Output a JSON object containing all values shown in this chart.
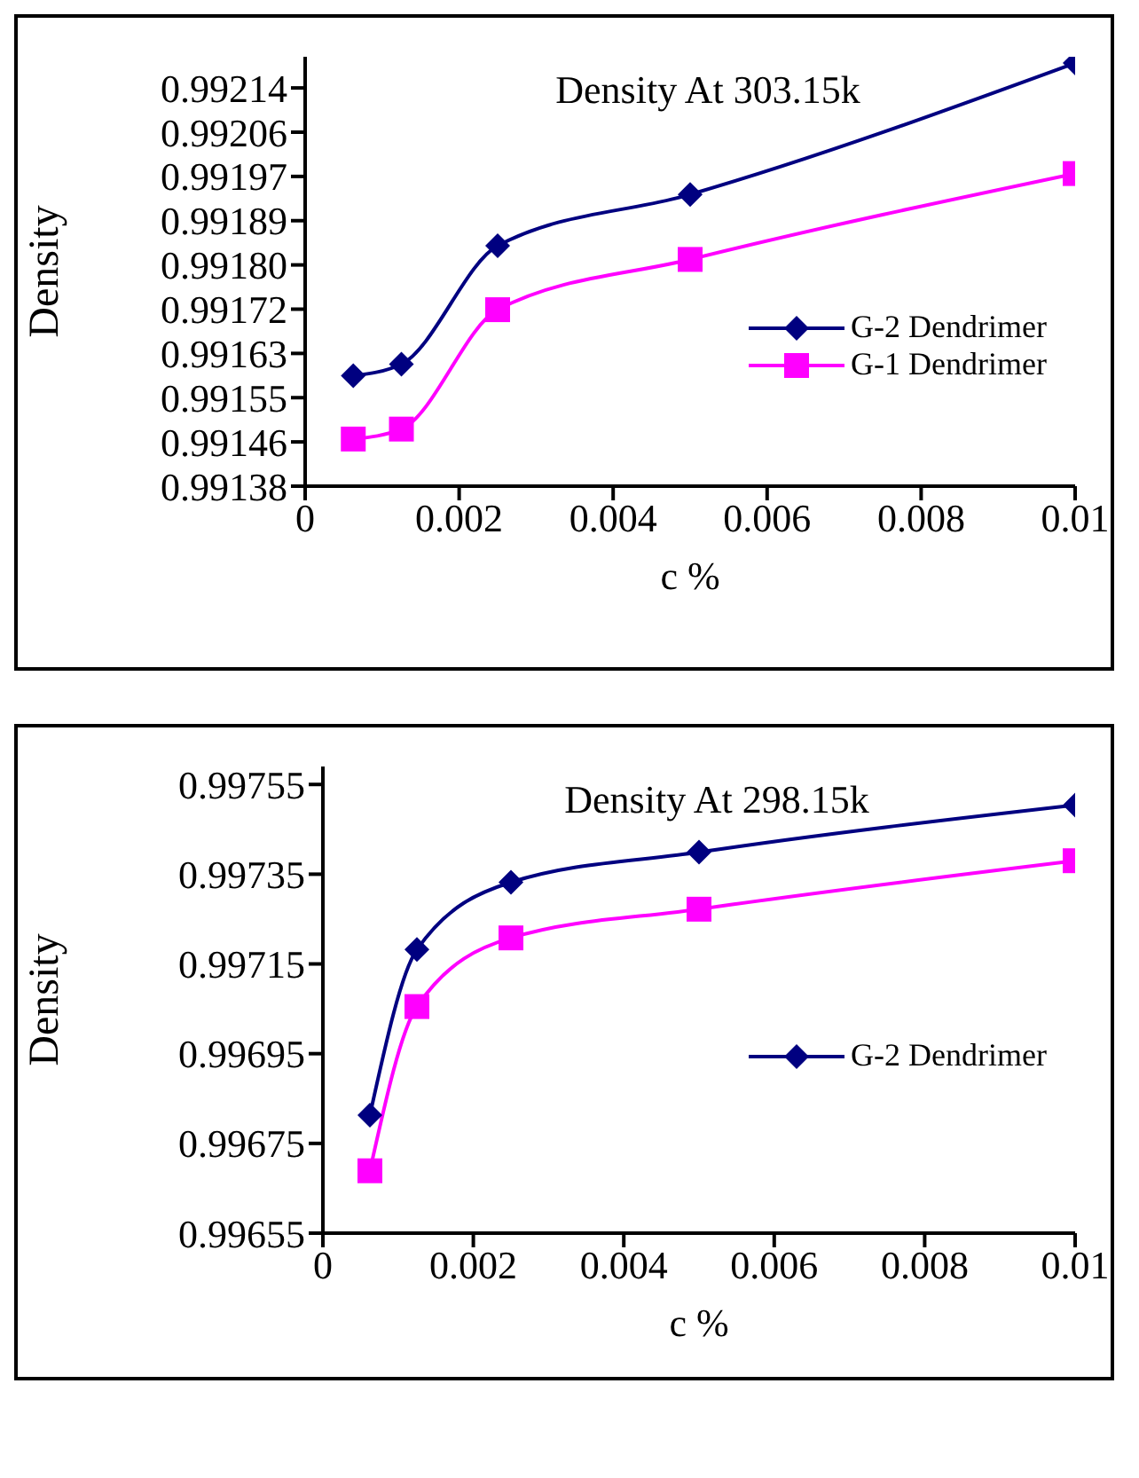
{
  "chart_data": [
    {
      "type": "line",
      "title": "Density At 303.15k",
      "xlabel": "c %",
      "ylabel": "Density",
      "x": [
        0.000625,
        0.00125,
        0.0025,
        0.005,
        0.01
      ],
      "series": [
        {
          "name": "G-2 Dendrimer",
          "color": "#000080",
          "marker": "diamond",
          "values": [
            0.991591,
            0.991613,
            0.991839,
            0.991937,
            0.992188
          ]
        },
        {
          "name": "G-1 Dendrimer",
          "color": "#ff00ff",
          "marker": "square",
          "values": [
            0.99147,
            0.991489,
            0.991717,
            0.991813,
            0.991977
          ]
        }
      ],
      "xlim": [
        0,
        0.01
      ],
      "xticks": [
        0,
        0.002,
        0.004,
        0.006,
        0.008,
        0.01
      ],
      "ylim": [
        0.99138,
        0.9922
      ],
      "yticks": [
        {
          "value": 0.99138,
          "label": "0.99138"
        },
        {
          "value": 0.9914645,
          "label": "0.99146"
        },
        {
          "value": 0.991549,
          "label": "0.99155"
        },
        {
          "value": 0.9916335,
          "label": "0.99163"
        },
        {
          "value": 0.991718,
          "label": "0.99172"
        },
        {
          "value": 0.9918025,
          "label": "0.99180"
        },
        {
          "value": 0.991887,
          "label": "0.99189"
        },
        {
          "value": 0.9919715,
          "label": "0.99197"
        },
        {
          "value": 0.992056,
          "label": "0.99206"
        },
        {
          "value": 0.9921405,
          "label": "0.99214"
        }
      ],
      "grid": false,
      "legend": "right"
    },
    {
      "type": "line",
      "title": "Density At 298.15k",
      "xlabel": "c %",
      "ylabel": "Density",
      "x": [
        0.000625,
        0.00125,
        0.0025,
        0.005,
        0.01
      ],
      "series": [
        {
          "name": "G-2 Dendrimer",
          "color": "#000080",
          "marker": "diamond",
          "values": [
            0.996813,
            0.997182,
            0.997332,
            0.997399,
            0.997504
          ]
        },
        {
          "color": "#ff00ff",
          "marker": "square",
          "values": [
            0.996689,
            0.997055,
            0.997208,
            0.997272,
            0.99738
          ]
        }
      ],
      "xlim": [
        0,
        0.01
      ],
      "xticks": [
        0,
        0.002,
        0.004,
        0.006,
        0.008,
        0.01
      ],
      "ylim": [
        0.99655,
        0.99759
      ],
      "yticks": [
        {
          "value": 0.99655,
          "label": "0.99655"
        },
        {
          "value": 0.99675,
          "label": "0.99675"
        },
        {
          "value": 0.99695,
          "label": "0.99695"
        },
        {
          "value": 0.99715,
          "label": "0.99715"
        },
        {
          "value": 0.99735,
          "label": "0.99735"
        },
        {
          "value": 0.99755,
          "label": "0.99755"
        }
      ],
      "grid": false,
      "legend": "right"
    }
  ]
}
